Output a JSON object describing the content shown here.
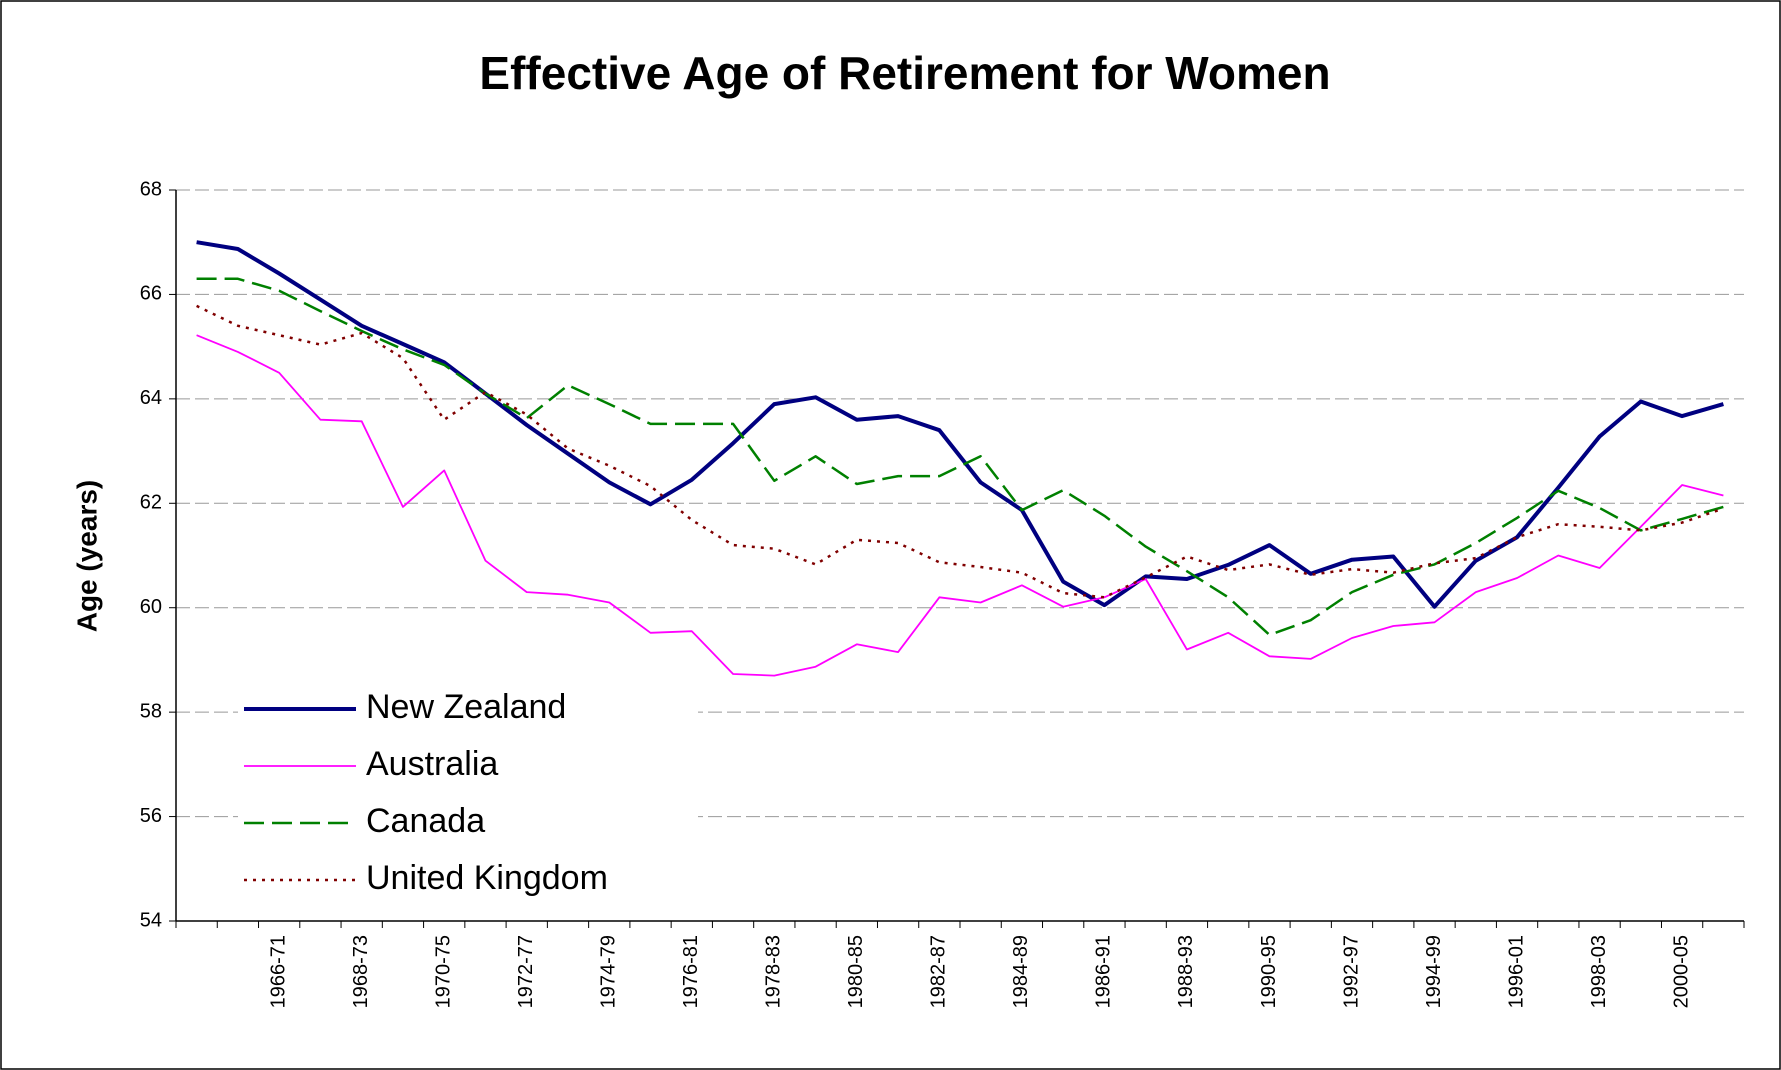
{
  "chart_data": {
    "type": "line",
    "title": "Effective Age of Retirement for Women",
    "y_label": "Age (years)",
    "categories": [
      null,
      null,
      "1966-71",
      null,
      "1968-73",
      null,
      "1970-75",
      null,
      "1972-77",
      null,
      "1974-79",
      null,
      "1976-81",
      null,
      "1978-83",
      null,
      "1980-85",
      null,
      "1982-87",
      null,
      "1984-89",
      null,
      "1986-91",
      null,
      "1988-93",
      null,
      "1990-95",
      null,
      "1992-97",
      null,
      "1994-99",
      null,
      "1996-01",
      null,
      "1998-03",
      null,
      "2000-05",
      null
    ],
    "series": [
      {
        "name": "New Zealand",
        "color": "#000080",
        "linestyle": "solid",
        "values": [
          67.0,
          66.87,
          66.4,
          65.9,
          65.4,
          65.05,
          64.7,
          64.1,
          63.5,
          62.95,
          62.4,
          61.98,
          62.45,
          63.15,
          63.9,
          64.03,
          63.6,
          63.67,
          63.4,
          62.4,
          61.87,
          60.5,
          60.05,
          60.6,
          60.55,
          60.82,
          61.2,
          60.65,
          60.92,
          60.98,
          60.02,
          60.9,
          61.35,
          62.3,
          63.28,
          63.95,
          63.67,
          63.9
        ]
      },
      {
        "name": "Australia",
        "color": "#ff00ff",
        "linestyle": "solid",
        "values": [
          65.22,
          64.9,
          64.5,
          63.6,
          63.57,
          61.93,
          62.63,
          60.9,
          60.3,
          60.25,
          60.1,
          59.52,
          59.55,
          58.73,
          58.7,
          58.87,
          59.3,
          59.15,
          60.2,
          60.1,
          60.43,
          60.02,
          60.2,
          60.55,
          59.2,
          59.52,
          59.07,
          59.02,
          59.42,
          59.65,
          59.72,
          60.3,
          60.57,
          61.0,
          60.76,
          61.55,
          62.35,
          62.15
        ]
      },
      {
        "name": "Canada",
        "color": "#008000",
        "linestyle": "dashed",
        "values": [
          66.3,
          66.3,
          66.07,
          65.68,
          65.3,
          64.95,
          64.65,
          64.1,
          63.63,
          64.26,
          63.9,
          63.52,
          63.52,
          63.52,
          62.43,
          62.9,
          62.37,
          62.52,
          62.52,
          62.9,
          61.87,
          62.25,
          61.76,
          61.17,
          60.7,
          60.2,
          59.48,
          59.76,
          60.3,
          60.63,
          60.83,
          61.24,
          61.72,
          62.24,
          61.91,
          61.48,
          61.7,
          61.93
        ]
      },
      {
        "name": "United Kingdom",
        "color": "#800000",
        "linestyle": "dotted",
        "values": [
          65.78,
          65.4,
          65.22,
          65.04,
          65.26,
          64.78,
          63.6,
          64.13,
          63.7,
          63.05,
          62.72,
          62.33,
          61.68,
          61.2,
          61.13,
          60.83,
          61.3,
          61.24,
          60.87,
          60.78,
          60.67,
          60.28,
          60.2,
          60.58,
          60.98,
          60.72,
          60.83,
          60.63,
          60.74,
          60.67,
          60.85,
          60.95,
          61.35,
          61.6,
          61.55,
          61.48,
          61.63,
          61.9
        ]
      }
    ],
    "ylim": [
      54,
      68
    ],
    "yticks": [
      54,
      56,
      58,
      60,
      62,
      64,
      66,
      68
    ],
    "grid": true,
    "legend": "lower left"
  }
}
